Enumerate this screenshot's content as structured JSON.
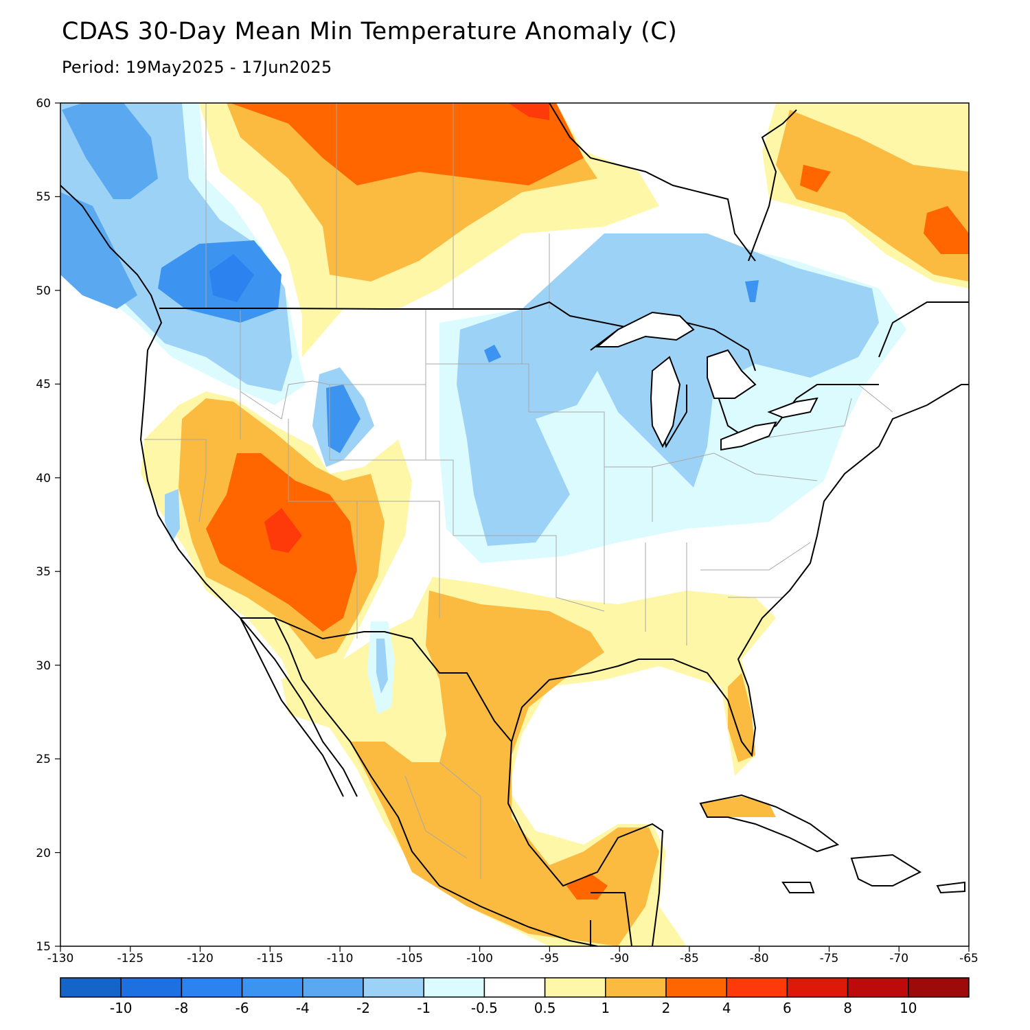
{
  "header": {
    "title": "CDAS 30-Day Mean Min Temperature Anomaly (C)",
    "subtitle": "Period: 19May2025 - 17Jun2025"
  },
  "axes": {
    "lon_labels": [
      "-130",
      "-125",
      "-120",
      "-115",
      "-110",
      "-105",
      "-100",
      "-95",
      "-90",
      "-85",
      "-80",
      "-75",
      "-70",
      "-65"
    ],
    "lat_labels": [
      "60",
      "55",
      "50",
      "45",
      "40",
      "35",
      "30",
      "25",
      "20",
      "15"
    ],
    "lon_range": [
      -130,
      -65
    ],
    "lat_range": [
      15,
      60
    ]
  },
  "colorbar": {
    "labels": [
      "-10",
      "-8",
      "-6",
      "-4",
      "-2",
      "-1",
      "-0.5",
      "0.5",
      "1",
      "2",
      "4",
      "6",
      "8",
      "10"
    ],
    "colors": [
      "#1565c8",
      "#1e6fe0",
      "#2c82ee",
      "#3c94f0",
      "#5aa8ef",
      "#9dd2f7",
      "#dcfbfe",
      "#ffffff",
      "#fff7a8",
      "#fbbb40",
      "#ff6600",
      "#ff3a0a",
      "#dd1a0a",
      "#bd0a0a",
      "#9c0a0a"
    ]
  },
  "map_colors": {
    "land_outline": "#000000",
    "state_lines": "#a8a8a8",
    "neutral": "#ffffff"
  }
}
